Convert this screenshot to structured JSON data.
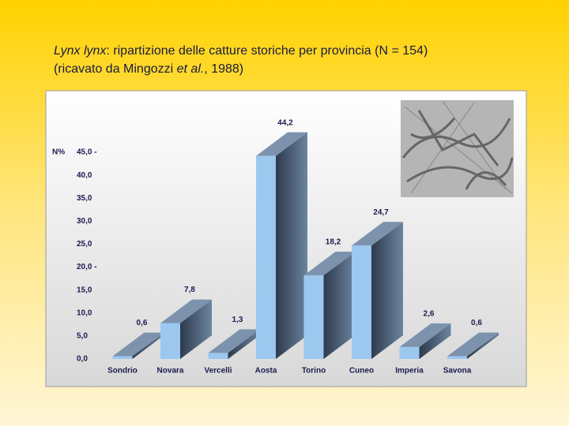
{
  "chart_data": {
    "type": "bar3d",
    "title": {
      "line1": [
        "Lynx lynx",
        ": ripartizione delle catture storiche per provincia (N = 154)"
      ],
      "line2": [
        "(ricavato da Mingozzi ",
        "et al.",
        ", 1988)"
      ]
    },
    "y_label": "N%",
    "categories": [
      "Sondrio",
      "Novara",
      "Vercelli",
      "Aosta",
      "Torino",
      "Cuneo",
      "Imperia",
      "Savona"
    ],
    "values": [
      0.6,
      7.8,
      1.3,
      44.2,
      18.2,
      24.7,
      2.6,
      0.6
    ],
    "value_labels": [
      "0,6",
      "7,8",
      "1,3",
      "44,2",
      "18,2",
      "24,7",
      "2,6",
      "0,6"
    ],
    "color": "#9cc8f0",
    "ylim": [
      0,
      45
    ],
    "yticks": [
      {
        "value": 0,
        "label": "0,0"
      },
      {
        "value": 5,
        "label": "5,0"
      },
      {
        "value": 10,
        "label": "10,0"
      },
      {
        "value": 15,
        "label": "15,0"
      },
      {
        "value": 20,
        "label": "20,0 -"
      },
      {
        "value": 25,
        "label": "25,0"
      },
      {
        "value": 30,
        "label": "30,0"
      },
      {
        "value": 35,
        "label": "35,0"
      },
      {
        "value": 40,
        "label": "40,0"
      },
      {
        "value": 45,
        "label": "45,0 -"
      }
    ]
  }
}
